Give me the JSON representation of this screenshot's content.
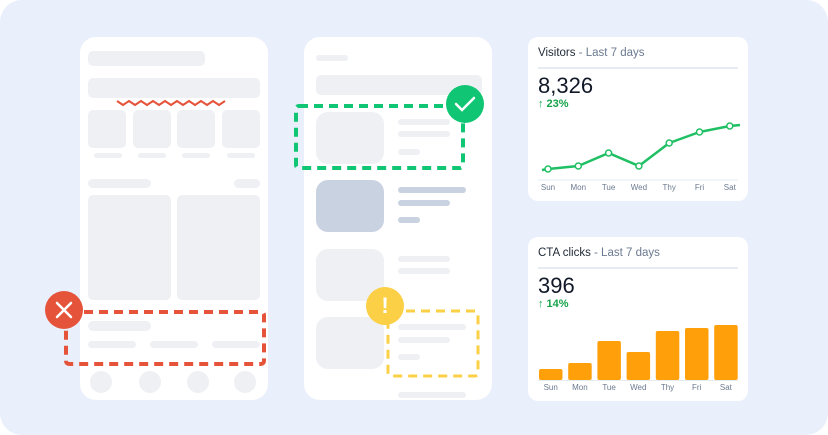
{
  "colors": {
    "background": "#e9effb",
    "error": "#e5533b",
    "success": "#10c573",
    "warning": "#fbd046",
    "line": "#1fbf63",
    "bar": "#ff9f0a",
    "delta": "#16a34a"
  },
  "badges": {
    "error_icon": "close-icon",
    "success_icon": "check-icon",
    "warning_icon": "exclamation-icon",
    "warning_glyph": "!"
  },
  "cards": [
    {
      "title": "Visitors",
      "subtitle": " - Last 7 days",
      "value": "8,326",
      "delta": "↑ 23%"
    },
    {
      "title": "CTA clicks",
      "subtitle": " - Last 7 days",
      "value": "396",
      "delta": "↑ 14%"
    }
  ],
  "chart_data": [
    {
      "type": "line",
      "title": "Visitors - Last 7 days",
      "categories": [
        "Sun",
        "Mon",
        "Tue",
        "Wed",
        "Thy",
        "Fri",
        "Sat"
      ],
      "values": [
        11,
        14,
        27,
        14,
        37,
        48,
        54
      ],
      "grid": false,
      "y_axis": "none (relative)"
    },
    {
      "type": "bar",
      "title": "CTA clicks - Last 7 days",
      "categories": [
        "Sun",
        "Mon",
        "Tue",
        "Wed",
        "Thy",
        "Fri",
        "Sat"
      ],
      "values": [
        11,
        17,
        39,
        28,
        49,
        52,
        55
      ],
      "grid": false,
      "y_axis": "none (relative)"
    }
  ]
}
